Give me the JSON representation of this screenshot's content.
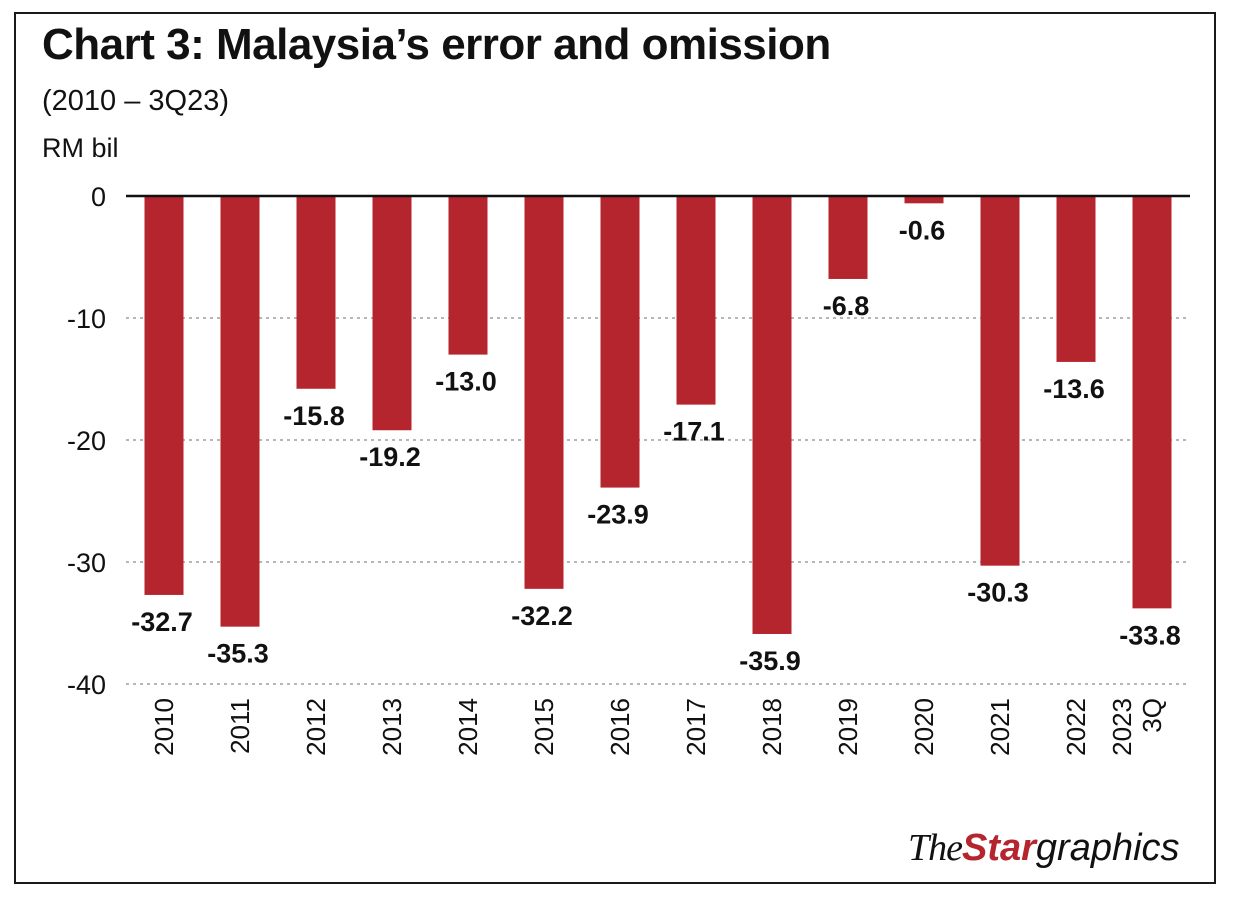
{
  "chart_data": {
    "type": "bar",
    "title": "Chart 3: Malaysia’s error and omission",
    "subtitle": "(2010 – 3Q23)",
    "ylabel": "RM bil",
    "xlabel": "",
    "categories": [
      "2010",
      "2011",
      "2012",
      "2013",
      "2014",
      "2015",
      "2016",
      "2017",
      "2018",
      "2019",
      "2020",
      "2021",
      "2022",
      "3Q 2023"
    ],
    "values": [
      -32.7,
      -35.3,
      -15.8,
      -19.2,
      -13.0,
      -32.2,
      -23.9,
      -17.1,
      -35.9,
      -6.8,
      -0.6,
      -30.3,
      -13.6,
      -33.8
    ],
    "data_labels": [
      "-32.7",
      "-35.3",
      "-15.8",
      "-19.2",
      "-13.0",
      "-32.2",
      "-23.9",
      "-17.1",
      "-35.9",
      "-6.8",
      "-0.6",
      "-30.3",
      "-13.6",
      "-33.8"
    ],
    "yticks": [
      0,
      -10,
      -20,
      -30,
      -40
    ],
    "ytick_labels": [
      "0",
      "-10",
      "-20",
      "-30",
      "-40"
    ],
    "ylim": [
      -40,
      0
    ],
    "grid": true,
    "bar_color": "#b5252e"
  },
  "branding": {
    "the": "The",
    "star": "Star",
    "graphics": "graphics"
  }
}
